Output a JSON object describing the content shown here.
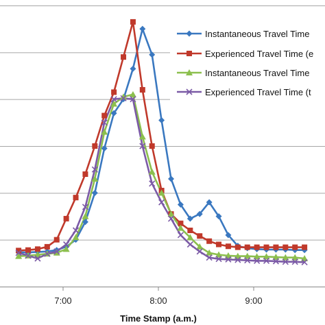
{
  "chart_data": {
    "type": "line",
    "title": "",
    "xlabel": "Time Stamp (a.m.)",
    "ylabel": "",
    "x_ticks": [
      {
        "value": 420,
        "label": "7:00"
      },
      {
        "value": 480,
        "label": "8:00"
      },
      {
        "value": 540,
        "label": "9:00"
      }
    ],
    "x_range": [
      390,
      575
    ],
    "y_range": [
      0,
      6
    ],
    "y_gridlines": [
      1,
      2,
      3,
      4,
      5,
      6
    ],
    "grid": true,
    "legend_position": "top-right",
    "x": [
      392,
      398,
      404,
      410,
      416,
      422,
      428,
      434,
      440,
      446,
      452,
      458,
      464,
      470,
      476,
      482,
      488,
      494,
      500,
      506,
      512,
      518,
      524,
      530,
      536,
      542,
      548,
      554,
      560,
      566,
      572
    ],
    "series": [
      {
        "name": "Instantaneous Travel Time",
        "color": "#3a78c0",
        "marker": "diamond",
        "values": [
          0.73,
          0.73,
          0.74,
          0.75,
          0.78,
          0.85,
          1.0,
          1.38,
          2.0,
          2.95,
          3.7,
          4.0,
          4.65,
          5.5,
          4.95,
          3.55,
          2.3,
          1.75,
          1.45,
          1.55,
          1.8,
          1.5,
          1.1,
          0.87,
          0.82,
          0.8,
          0.79,
          0.79,
          0.79,
          0.78,
          0.78
        ]
      },
      {
        "name": "Experienced Travel Time (e",
        "color": "#c0392b",
        "marker": "square",
        "values": [
          0.77,
          0.78,
          0.8,
          0.85,
          1.0,
          1.45,
          1.9,
          2.4,
          3.0,
          3.65,
          4.15,
          4.9,
          5.65,
          4.2,
          3.0,
          2.05,
          1.55,
          1.35,
          1.2,
          1.08,
          0.97,
          0.9,
          0.86,
          0.84,
          0.84,
          0.84,
          0.84,
          0.84,
          0.84,
          0.84,
          0.84
        ]
      },
      {
        "name": "Instantaneous Travel Time",
        "color": "#8cbf4e",
        "marker": "triangle",
        "values": [
          0.65,
          0.66,
          0.68,
          0.7,
          0.72,
          0.8,
          1.05,
          1.5,
          2.3,
          3.3,
          3.9,
          4.05,
          4.1,
          3.2,
          2.45,
          2.0,
          1.55,
          1.25,
          1.05,
          0.85,
          0.72,
          0.68,
          0.66,
          0.65,
          0.65,
          0.64,
          0.64,
          0.63,
          0.62,
          0.62,
          0.6
        ]
      },
      {
        "name": "Experienced Travel Time (t",
        "color": "#7b5aa6",
        "marker": "x",
        "values": [
          0.72,
          0.66,
          0.6,
          0.7,
          0.75,
          0.9,
          1.2,
          1.7,
          2.5,
          3.5,
          4.0,
          4.02,
          4.0,
          3.0,
          2.2,
          1.8,
          1.45,
          1.1,
          0.9,
          0.75,
          0.62,
          0.59,
          0.58,
          0.57,
          0.56,
          0.55,
          0.55,
          0.54,
          0.53,
          0.53,
          0.52
        ]
      }
    ]
  }
}
